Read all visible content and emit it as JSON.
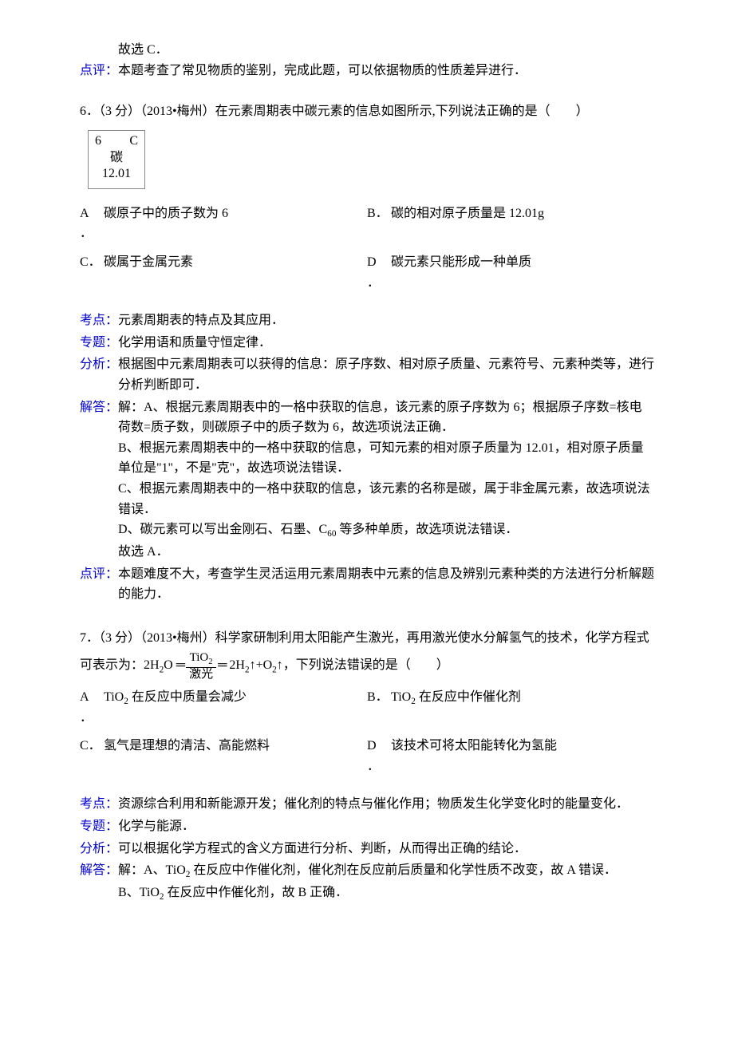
{
  "labels": {
    "kaodian": "考点：",
    "zhuanti": "专题：",
    "fenxi": "分析：",
    "jieda": "解答：",
    "dianping": "点评："
  },
  "q5_tail": {
    "final": "故选 C．",
    "dianping": "本题考查了常见物质的鉴别，完成此题，可以依据物质的性质差异进行．"
  },
  "element_cell": {
    "number": "6",
    "symbol": "C",
    "name_cn": "碳",
    "mass": "12.01"
  },
  "q6": {
    "stem": "6．（3 分）（2013•梅州）在元素周期表中碳元素的信息如图所示,下列说法正确的是（　　）",
    "options": {
      "A": "碳原子中的质子数为 6",
      "B": "碳的相对原子质量是 12.01g",
      "C": "碳属于金属元素",
      "D": "碳元素只能形成一种单质"
    },
    "answer": {
      "kaodian": "元素周期表的特点及其应用．",
      "zhuanti": "化学用语和质量守恒定律．",
      "fenxi": "根据图中元素周期表可以获得的信息：原子序数、相对原子质量、元素符号、元素种类等，进行分析判断即可．",
      "jieda1": "解：A、根据元素周期表中的一格中获取的信息，该元素的原子序数为 6；根据原子序数=核电荷数=质子数，则碳原子中的质子数为 6，故选项说法正确．",
      "jieda2": "B、根据元素周期表中的一格中获取的信息，可知元素的相对原子质量为 12.01，相对原子质量单位是\"1\"，不是\"克\"，故选项说法错误．",
      "jieda3": "C、根据元素周期表中的一格中获取的信息，该元素的名称是碳，属于非金属元素，故选项说法错误．",
      "jieda4_pre": "D、碳元素可以写出金刚石、石墨、C",
      "jieda4_post": " 等多种单质，故选项说法错误．",
      "final": "故选 A．",
      "dianping": "本题难度不大，考查学生灵活运用元素周期表中元素的信息及辨别元素种类的方法进行分析解题的能力．"
    }
  },
  "q7": {
    "stem_pre": "7．（3 分）（2013•梅州）科学家研制利用太阳能产生激光，再用激光使水分解氢气的技术，化学方程式可表示为：2H",
    "stem_mid1": "O",
    "cond_top": "TiO",
    "cond_bot": "激光",
    "stem_mid2": "2H",
    "stem_mid3": "↑+O",
    "stem_post": "↑，下列说法错误的是（　　）",
    "options": {
      "A_pre": "TiO",
      "A_post": " 在反应中质量会减少",
      "B_pre": "TiO",
      "B_post": " 在反应中作催化剂",
      "C": "氢气是理想的清洁、高能燃料",
      "D": "该技术可将太阳能转化为氢能"
    },
    "answer": {
      "kaodian": "资源综合利用和新能源开发；催化剂的特点与催化作用；物质发生化学变化时的能量变化．",
      "zhuanti": "化学与能源．",
      "fenxi": "可以根据化学方程式的含义方面进行分析、判断，从而得出正确的结论．",
      "jiedaA_pre": "解：A、TiO",
      "jiedaA_post": " 在反应中作催化剂，催化剂在反应前后质量和化学性质不改变，故 A 错误．",
      "jiedaB_pre": "B、TiO",
      "jiedaB_post": " 在反应中作催化剂，故 B 正确．"
    }
  }
}
